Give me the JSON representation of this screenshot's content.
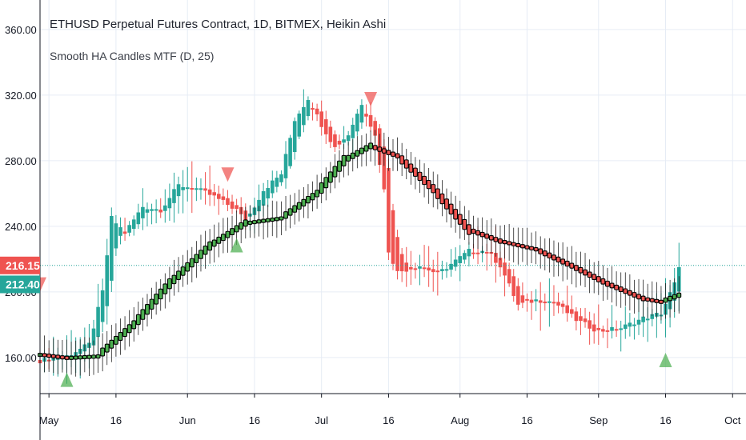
{
  "legend": {
    "title": "ETHUSD Perpetual Futures Contract, 1D, BITMEX, Heikin Ashi",
    "indicator": "Smooth HA Candles MTF (D, 25)"
  },
  "colors": {
    "up": "#26a69a",
    "down": "#ef5350",
    "smooth_up": "#4caf50",
    "smooth_down": "#ef5350",
    "smooth_outline": "#000000",
    "grid": "#e6ecf5",
    "axis_text": "#131722",
    "price_line": "#26a69a",
    "signal_up": "#4caf50",
    "signal_down": "#ef5350"
  },
  "chart_data": {
    "type": "candlestick",
    "y_ticks": [
      "360.00",
      "320.00",
      "280.00",
      "240.00",
      "200.00",
      "160.00"
    ],
    "x_ticks": [
      "May",
      "16",
      "Jun",
      "16",
      "Jul",
      "16",
      "Aug",
      "16",
      "Sep",
      "16",
      "Oct"
    ],
    "last_price_labels": [
      {
        "text": "216.15",
        "value": 216.15,
        "color": "#ef5350"
      },
      {
        "text": "212.40",
        "value": 212.4,
        "color": "#26a69a"
      }
    ],
    "price_line": 216.15,
    "x_range": [
      "2019-04-29",
      "2019-10-04"
    ],
    "y_range": [
      138,
      378
    ],
    "grid": true,
    "anchors": [
      [
        "2019-04-29",
        158
      ],
      [
        "2019-05-05",
        161
      ],
      [
        "2019-05-10",
        168
      ],
      [
        "2019-05-13",
        200
      ],
      [
        "2019-05-15",
        245
      ],
      [
        "2019-05-18",
        236
      ],
      [
        "2019-05-22",
        252
      ],
      [
        "2019-05-26",
        250
      ],
      [
        "2019-05-30",
        265
      ],
      [
        "2019-06-03",
        263
      ],
      [
        "2019-06-07",
        258
      ],
      [
        "2019-06-12",
        250
      ],
      [
        "2019-06-14",
        243
      ],
      [
        "2019-06-18",
        262
      ],
      [
        "2019-06-22",
        272
      ],
      [
        "2019-06-25",
        305
      ],
      [
        "2019-06-28",
        318
      ],
      [
        "2019-07-01",
        302
      ],
      [
        "2019-07-04",
        288
      ],
      [
        "2019-07-07",
        296
      ],
      [
        "2019-07-10",
        315
      ],
      [
        "2019-07-13",
        295
      ],
      [
        "2019-07-15",
        262
      ],
      [
        "2019-07-16",
        225
      ],
      [
        "2019-07-18",
        212
      ],
      [
        "2019-07-23",
        216
      ],
      [
        "2019-07-27",
        211
      ],
      [
        "2019-08-03",
        225
      ],
      [
        "2019-08-07",
        225
      ],
      [
        "2019-08-10",
        216
      ],
      [
        "2019-08-14",
        192
      ],
      [
        "2019-08-18",
        195
      ],
      [
        "2019-08-22",
        194
      ],
      [
        "2019-08-27",
        183
      ],
      [
        "2019-09-01",
        176
      ],
      [
        "2019-09-06",
        178
      ],
      [
        "2019-09-11",
        184
      ],
      [
        "2019-09-15",
        187
      ],
      [
        "2019-09-18",
        205
      ],
      [
        "2019-09-19",
        214
      ]
    ],
    "smooth_anchors": [
      [
        "2019-04-29",
        162
      ],
      [
        "2019-05-05",
        160
      ],
      [
        "2019-05-12",
        161
      ],
      [
        "2019-05-20",
        180
      ],
      [
        "2019-05-28",
        205
      ],
      [
        "2019-06-06",
        228
      ],
      [
        "2019-06-14",
        242
      ],
      [
        "2019-06-22",
        245
      ],
      [
        "2019-06-30",
        260
      ],
      [
        "2019-07-06",
        280
      ],
      [
        "2019-07-12",
        289
      ],
      [
        "2019-07-18",
        283
      ],
      [
        "2019-07-26",
        263
      ],
      [
        "2019-08-03",
        238
      ],
      [
        "2019-08-10",
        231
      ],
      [
        "2019-08-18",
        226
      ],
      [
        "2019-08-26",
        216
      ],
      [
        "2019-09-03",
        205
      ],
      [
        "2019-09-11",
        196
      ],
      [
        "2019-09-15",
        194
      ],
      [
        "2019-09-19",
        198
      ]
    ],
    "signals": [
      {
        "date": "2019-04-29",
        "value": 205,
        "dir": "down"
      },
      {
        "date": "2019-05-05",
        "value": 146,
        "dir": "up"
      },
      {
        "date": "2019-06-10",
        "value": 272,
        "dir": "down"
      },
      {
        "date": "2019-06-12",
        "value": 228,
        "dir": "up"
      },
      {
        "date": "2019-07-12",
        "value": 318,
        "dir": "down"
      },
      {
        "date": "2019-09-16",
        "value": 158,
        "dir": "up"
      }
    ]
  }
}
